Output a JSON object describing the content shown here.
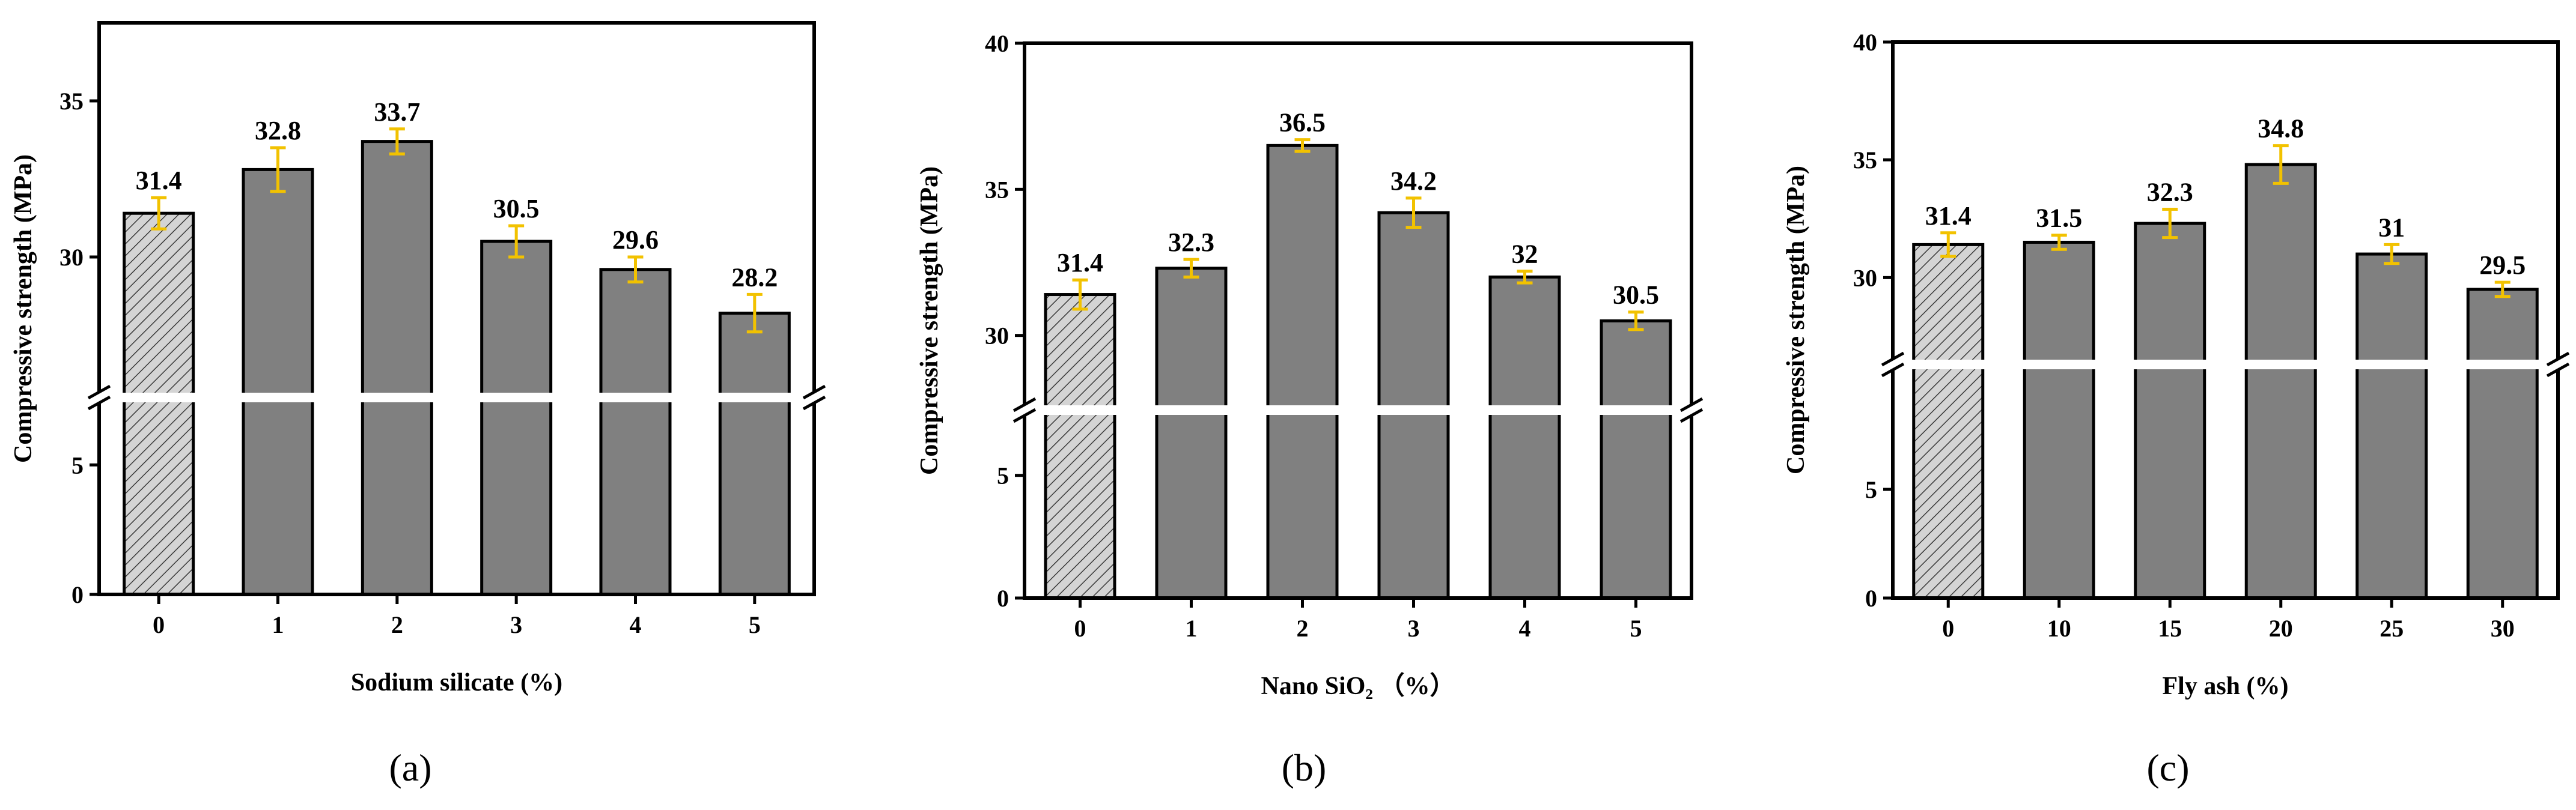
{
  "figure": {
    "colors": {
      "bar_fill": "#808080",
      "baseline_fill": "#d4d4d4",
      "bar_stroke": "#000000",
      "error_bar": "#f2c200",
      "break_band": "#ffffff"
    }
  },
  "chart_data": [
    {
      "type": "bar",
      "panel_label": "(a)",
      "panel_letter": "a",
      "categories": [
        "0",
        "1",
        "2",
        "3",
        "4",
        "5"
      ],
      "values": [
        31.4,
        32.8,
        33.7,
        30.5,
        29.6,
        28.2
      ],
      "value_labels": [
        "31.4",
        "32.8",
        "33.7",
        "30.5",
        "29.6",
        "28.2"
      ],
      "errors": [
        0.5,
        0.7,
        0.4,
        0.5,
        0.4,
        0.6
      ],
      "xlabel": "Sodium silicate (%)",
      "ylabel": "Compressive strength (MPa)",
      "broken_axis": true,
      "lower_range": [
        0,
        7
      ],
      "upper_range": [
        26,
        37.5
      ],
      "lower_ticks": [
        "0",
        "5"
      ],
      "upper_ticks": [
        "30",
        "35"
      ],
      "hatched_baseline": true
    },
    {
      "type": "bar",
      "panel_label": "(b)",
      "panel_letter": "b",
      "categories": [
        "0",
        "1",
        "2",
        "3",
        "4",
        "5"
      ],
      "values": [
        31.4,
        32.3,
        36.5,
        34.2,
        32,
        30.5
      ],
      "value_labels": [
        "31.4",
        "32.3",
        "36.5",
        "34.2",
        "32",
        "30.5"
      ],
      "errors": [
        0.5,
        0.3,
        0.2,
        0.5,
        0.2,
        0.3
      ],
      "xlabel": "Nano SiO₂ （%）",
      "ylabel": "Compressive strength (MPa)",
      "broken_axis": true,
      "lower_range": [
        0,
        7
      ],
      "upper_range": [
        28,
        40
      ],
      "lower_ticks": [
        "0",
        "5"
      ],
      "upper_ticks": [
        "30",
        "35",
        "40"
      ],
      "hatched_baseline": true
    },
    {
      "type": "bar",
      "panel_label": "(c)",
      "panel_letter": "c",
      "categories": [
        "0",
        "10",
        "15",
        "20",
        "25",
        "30"
      ],
      "values": [
        31.4,
        31.5,
        32.3,
        34.8,
        31,
        29.5
      ],
      "value_labels": [
        "31.4",
        "31.5",
        "32.3",
        "34.8",
        "31",
        "29.5"
      ],
      "errors": [
        0.5,
        0.3,
        0.6,
        0.8,
        0.4,
        0.3
      ],
      "xlabel": "Fly ash (%)",
      "ylabel": "Compressive strength (MPa)",
      "broken_axis": true,
      "lower_range": [
        0,
        10
      ],
      "upper_range": [
        27,
        40
      ],
      "lower_ticks": [
        "0",
        "5"
      ],
      "upper_ticks": [
        "30",
        "35",
        "40"
      ],
      "hatched_baseline": true
    }
  ]
}
